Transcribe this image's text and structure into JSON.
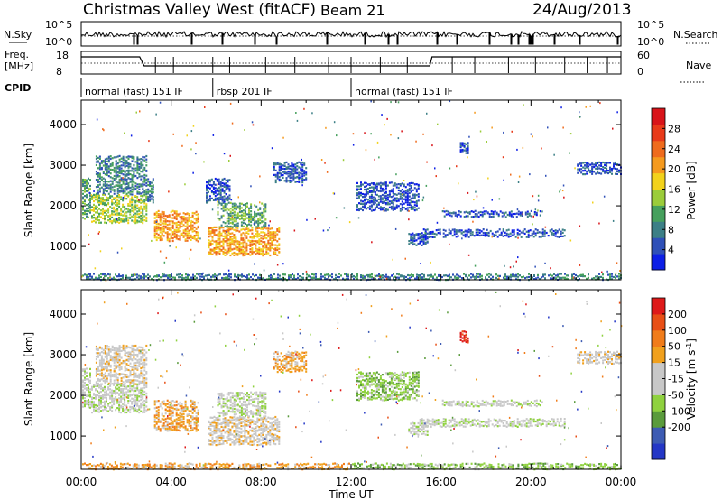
{
  "header": {
    "site": "Christmas Valley West (fitACF)",
    "beam": "Beam 21",
    "date": "24/Aug/2013"
  },
  "status_panels": {
    "nsky_label": "N.Sky",
    "nsky_ticks": [
      "10^5",
      "10^0"
    ],
    "nsearch_label": "N.Search",
    "nsearch_ticks": [
      "10^5",
      "10^0"
    ],
    "freq_label_1": "Freq.",
    "freq_label_2": "[MHz]",
    "freq_ticks": [
      "18",
      "8"
    ],
    "nave_label": "Nave",
    "nave_ticks": [
      "60",
      "0"
    ],
    "cpid_label": "CPID",
    "cpid_segments": [
      {
        "label": "normal (fast) 151 IF",
        "start_hour": 0.0,
        "end_hour": 5.85
      },
      {
        "label": "rbsp 201 IF",
        "start_hour": 5.85,
        "end_hour": 12.0
      },
      {
        "label": "normal (fast) 151 IF",
        "start_hour": 12.0,
        "end_hour": 24.0
      }
    ]
  },
  "chart_data": [
    {
      "type": "heatmap",
      "title": "",
      "xlabel": "Time UT",
      "ylabel": "Slant Range [km]",
      "xlim_hours": [
        0,
        24
      ],
      "ylim": [
        180,
        4600
      ],
      "x_tick_labels": [
        "00:00",
        "04:00",
        "08:00",
        "12:00",
        "16:00",
        "20:00",
        "00:00"
      ],
      "y_ticks": [
        1000,
        2000,
        3000,
        4000
      ],
      "colorbar": {
        "label": "Power [dB]",
        "ticks": [
          "4",
          "8",
          "12",
          "16",
          "20",
          "24",
          "28"
        ],
        "colors": [
          "#0d1fe6",
          "#2f50b8",
          "#3c7f86",
          "#46a05d",
          "#9bcc3a",
          "#f2d21c",
          "#f59a1e",
          "#ef6b1d",
          "#e83a1a",
          "#d8141a"
        ]
      },
      "echo_regions": [
        {
          "t0": 0.0,
          "t1": 0.4,
          "r0": 1700,
          "r1": 2700,
          "level": 3
        },
        {
          "t0": 0.4,
          "t1": 2.9,
          "r0": 1600,
          "r1": 2300,
          "level": 4
        },
        {
          "t0": 0.6,
          "t1": 2.9,
          "r0": 2300,
          "r1": 3250,
          "level": 2
        },
        {
          "t0": 2.9,
          "t1": 3.2,
          "r0": 2100,
          "r1": 2700,
          "level": 2
        },
        {
          "t0": 3.2,
          "t1": 5.2,
          "r0": 1150,
          "r1": 1900,
          "level": 6
        },
        {
          "t0": 5.6,
          "t1": 8.8,
          "r0": 800,
          "r1": 1500,
          "level": 6
        },
        {
          "t0": 6.0,
          "t1": 8.2,
          "r0": 1500,
          "r1": 2100,
          "level": 3
        },
        {
          "t0": 5.5,
          "t1": 6.6,
          "r0": 2100,
          "r1": 2700,
          "level": 1
        },
        {
          "t0": 8.5,
          "t1": 10.0,
          "r0": 2600,
          "r1": 3100,
          "level": 1
        },
        {
          "t0": 12.2,
          "t1": 15.0,
          "r0": 1900,
          "r1": 2600,
          "level": 1
        },
        {
          "t0": 14.5,
          "t1": 15.4,
          "r0": 1050,
          "r1": 1350,
          "level": 1
        },
        {
          "t0": 15.0,
          "t1": 21.5,
          "r0": 1250,
          "r1": 1450,
          "level": 1
        },
        {
          "t0": 16.0,
          "t1": 20.5,
          "r0": 1750,
          "r1": 1900,
          "level": 1
        },
        {
          "t0": 16.8,
          "t1": 17.2,
          "r0": 3300,
          "r1": 3600,
          "level": 1
        },
        {
          "t0": 22.0,
          "t1": 24.0,
          "r0": 2800,
          "r1": 3100,
          "level": 1
        },
        {
          "t0": 0.0,
          "t1": 24.0,
          "r0": 200,
          "r1": 350,
          "level": 2
        }
      ]
    },
    {
      "type": "heatmap",
      "title": "",
      "xlabel": "Time UT",
      "ylabel": "Slant Range [km]",
      "xlim_hours": [
        0,
        24
      ],
      "ylim": [
        180,
        4600
      ],
      "x_tick_labels": [
        "00:00",
        "04:00",
        "08:00",
        "12:00",
        "16:00",
        "20:00",
        "00:00"
      ],
      "y_ticks": [
        1000,
        2000,
        3000,
        4000
      ],
      "colorbar": {
        "label": "Velocity [m s^-1]",
        "ticks": [
          "200",
          "100",
          "50",
          "15",
          "-15",
          "-50",
          "-100",
          "-200"
        ],
        "colors": [
          "#2437c6",
          "#3d5bb3",
          "#5a9b3c",
          "#8fd13f",
          "#c8c8c8",
          "#c8c8c8",
          "#f0a01d",
          "#f07c1a",
          "#e84f16",
          "#de1a1a"
        ]
      },
      "echo_regions": [
        {
          "t0": 0.0,
          "t1": 0.4,
          "r0": 1700,
          "r1": 2700,
          "level": 4
        },
        {
          "t0": 0.4,
          "t1": 2.9,
          "r0": 1600,
          "r1": 2300,
          "level": 4
        },
        {
          "t0": 0.6,
          "t1": 2.9,
          "r0": 2300,
          "r1": 3250,
          "level": 5
        },
        {
          "t0": 3.2,
          "t1": 5.2,
          "r0": 1150,
          "r1": 1900,
          "level": 6
        },
        {
          "t0": 5.6,
          "t1": 8.8,
          "r0": 800,
          "r1": 1500,
          "level": 5
        },
        {
          "t0": 6.0,
          "t1": 8.2,
          "r0": 1500,
          "r1": 2100,
          "level": 4
        },
        {
          "t0": 8.5,
          "t1": 10.0,
          "r0": 2600,
          "r1": 3100,
          "level": 6
        },
        {
          "t0": 12.2,
          "t1": 15.0,
          "r0": 1900,
          "r1": 2600,
          "level": 3
        },
        {
          "t0": 14.5,
          "t1": 15.4,
          "r0": 1050,
          "r1": 1350,
          "level": 4
        },
        {
          "t0": 15.0,
          "t1": 21.5,
          "r0": 1250,
          "r1": 1450,
          "level": 4
        },
        {
          "t0": 16.0,
          "t1": 20.5,
          "r0": 1750,
          "r1": 1900,
          "level": 4
        },
        {
          "t0": 16.8,
          "t1": 17.2,
          "r0": 3300,
          "r1": 3600,
          "level": 9
        },
        {
          "t0": 22.0,
          "t1": 24.0,
          "r0": 2800,
          "r1": 3100,
          "level": 5
        },
        {
          "t0": 0.0,
          "t1": 12.0,
          "r0": 200,
          "r1": 350,
          "level": 6
        },
        {
          "t0": 12.0,
          "t1": 24.0,
          "r0": 200,
          "r1": 350,
          "level": 3
        }
      ]
    }
  ]
}
